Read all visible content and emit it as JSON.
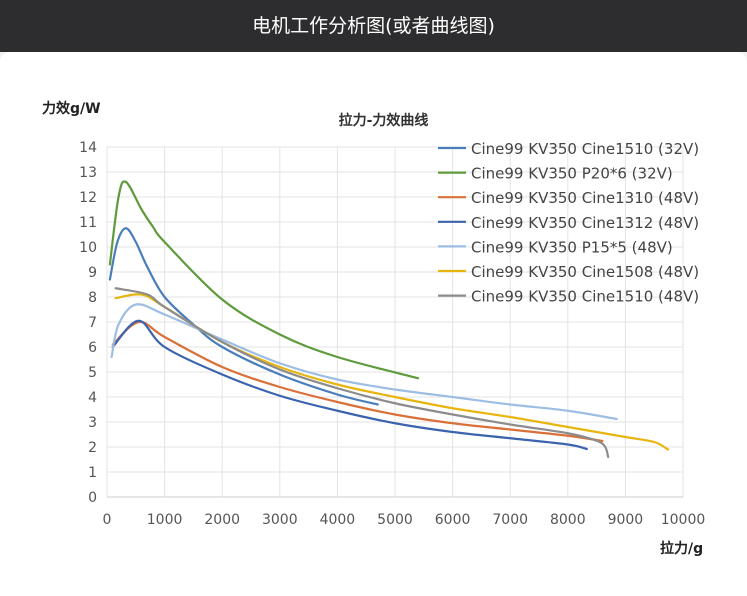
{
  "header": {
    "title": "电机工作分析图(或者曲线图)"
  },
  "chart_data": {
    "type": "line",
    "title": "拉力-力效曲线",
    "xlabel": "拉力/g",
    "ylabel": "力效g/W",
    "xlim": [
      0,
      10000
    ],
    "ylim": [
      0,
      14
    ],
    "xticks": [
      "0",
      "1000",
      "2000",
      "3000",
      "4000",
      "5000",
      "6000",
      "7000",
      "8000",
      "9000",
      "10000"
    ],
    "yticks": [
      "0",
      "1",
      "2",
      "3",
      "4",
      "5",
      "6",
      "7",
      "8",
      "9",
      "10",
      "11",
      "12",
      "13",
      "14"
    ],
    "grid": true,
    "legend": "top-right",
    "series": [
      {
        "name": "Cine99 KV350 Cine1510 (32V)",
        "color": "#4a7ebb",
        "points": [
          [
            50,
            8.7
          ],
          [
            180,
            10.2
          ],
          [
            330,
            10.75
          ],
          [
            500,
            10.2
          ],
          [
            700,
            9.2
          ],
          [
            1000,
            8.0
          ],
          [
            1500,
            6.9
          ],
          [
            2000,
            6.0
          ],
          [
            3000,
            4.9
          ],
          [
            4000,
            4.1
          ],
          [
            4700,
            3.7
          ]
        ]
      },
      {
        "name": "Cine99 KV350 P20*6 (32V)",
        "color": "#5f9a3c",
        "points": [
          [
            50,
            9.3
          ],
          [
            200,
            12.0
          ],
          [
            330,
            12.6
          ],
          [
            600,
            11.5
          ],
          [
            800,
            10.8
          ],
          [
            1000,
            10.2
          ],
          [
            2000,
            7.9
          ],
          [
            3000,
            6.5
          ],
          [
            4000,
            5.6
          ],
          [
            5400,
            4.75
          ]
        ]
      },
      {
        "name": "Cine99 KV350 Cine1310 (48V)",
        "color": "#d9703a",
        "points": [
          [
            100,
            6.1
          ],
          [
            550,
            7.0
          ],
          [
            1000,
            6.4
          ],
          [
            2000,
            5.2
          ],
          [
            3000,
            4.4
          ],
          [
            4000,
            3.8
          ],
          [
            5000,
            3.3
          ],
          [
            6000,
            2.95
          ],
          [
            7000,
            2.7
          ],
          [
            8000,
            2.45
          ],
          [
            8600,
            2.24
          ]
        ]
      },
      {
        "name": "Cine99 KV350 Cine1312 (48V)",
        "color": "#3c63ad",
        "points": [
          [
            100,
            6.0
          ],
          [
            550,
            7.05
          ],
          [
            1000,
            6.0
          ],
          [
            2000,
            4.9
          ],
          [
            3000,
            4.05
          ],
          [
            4000,
            3.45
          ],
          [
            5000,
            2.95
          ],
          [
            6000,
            2.6
          ],
          [
            7000,
            2.35
          ],
          [
            8000,
            2.1
          ],
          [
            8330,
            1.92
          ]
        ]
      },
      {
        "name": "Cine99 KV350 P15*5 (48V)",
        "color": "#9dbde3",
        "points": [
          [
            80,
            5.6
          ],
          [
            200,
            6.9
          ],
          [
            500,
            7.7
          ],
          [
            1000,
            7.3
          ],
          [
            2000,
            6.3
          ],
          [
            3000,
            5.35
          ],
          [
            4000,
            4.7
          ],
          [
            5000,
            4.3
          ],
          [
            6000,
            4.0
          ],
          [
            7000,
            3.7
          ],
          [
            8000,
            3.45
          ],
          [
            8850,
            3.12
          ]
        ]
      },
      {
        "name": "Cine99 KV350 Cine1508 (48V)",
        "color": "#e8b50e",
        "points": [
          [
            150,
            7.95
          ],
          [
            600,
            8.1
          ],
          [
            1000,
            7.6
          ],
          [
            2000,
            6.2
          ],
          [
            3000,
            5.2
          ],
          [
            4000,
            4.5
          ],
          [
            5000,
            4.0
          ],
          [
            6000,
            3.55
          ],
          [
            7000,
            3.2
          ],
          [
            8000,
            2.8
          ],
          [
            9000,
            2.4
          ],
          [
            9500,
            2.2
          ],
          [
            9740,
            1.9
          ]
        ]
      },
      {
        "name": "Cine99 KV350 Cine1510 (48V)",
        "color": "#8c8c8c",
        "points": [
          [
            150,
            8.35
          ],
          [
            700,
            8.1
          ],
          [
            1000,
            7.6
          ],
          [
            2000,
            6.2
          ],
          [
            3000,
            5.1
          ],
          [
            4000,
            4.35
          ],
          [
            5000,
            3.75
          ],
          [
            6000,
            3.3
          ],
          [
            7000,
            2.9
          ],
          [
            8000,
            2.55
          ],
          [
            8500,
            2.25
          ],
          [
            8650,
            2.0
          ],
          [
            8700,
            1.6
          ]
        ]
      }
    ]
  }
}
